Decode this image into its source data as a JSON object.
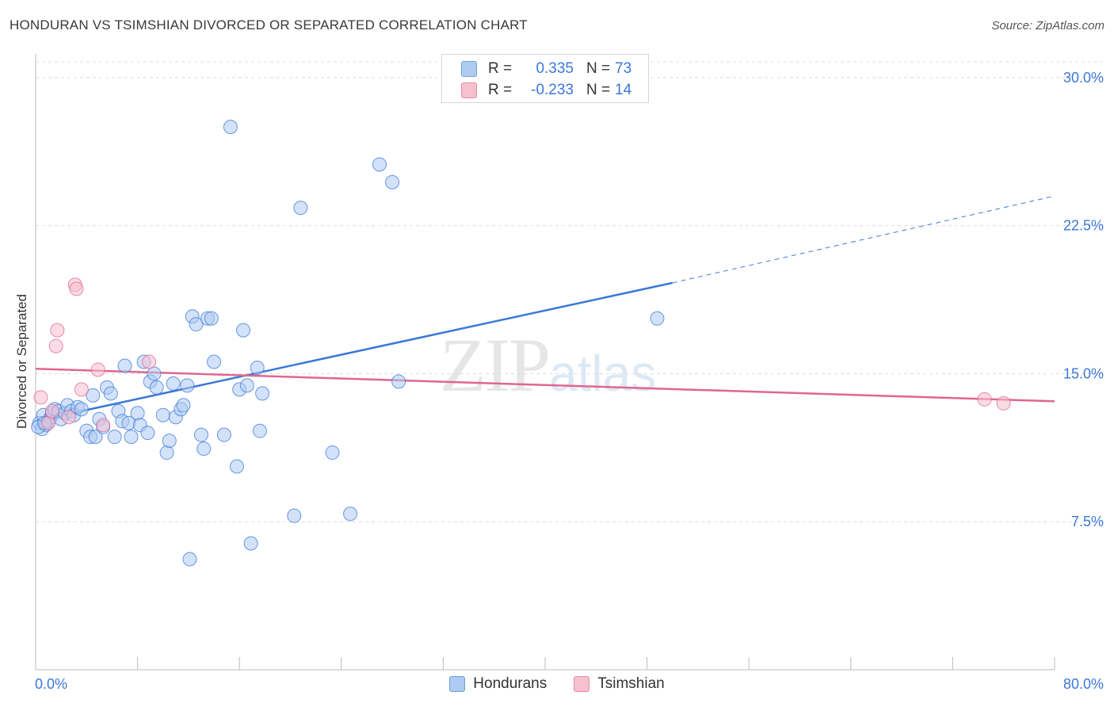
{
  "header": {
    "title": "HONDURAN VS TSIMSHIAN DIVORCED OR SEPARATED CORRELATION CHART",
    "source": "Source: ZipAtlas.com"
  },
  "watermark": {
    "zip": "ZIP",
    "atlas": "atlas"
  },
  "legend": {
    "rows": [
      {
        "r_label": "R =",
        "r_value": "0.335",
        "n_label": "N =",
        "n_value": "73",
        "color": "#aecbf2",
        "border": "#6f9fe0"
      },
      {
        "r_label": "R =",
        "r_value": "-0.233",
        "n_label": "N =",
        "n_value": "14",
        "color": "#f7c0cf",
        "border": "#e88aa6"
      }
    ]
  },
  "bottom_legend": [
    {
      "label": "Hondurans",
      "color": "#aecbf2",
      "border": "#6f9fe0"
    },
    {
      "label": "Tsimshian",
      "color": "#f7c0cf",
      "border": "#e88aa6"
    }
  ],
  "chart_data": {
    "type": "scatter",
    "title": "HONDURAN VS TSIMSHIAN DIVORCED OR SEPARATED CORRELATION CHART",
    "xlabel": "",
    "ylabel": "Divorced or Separated",
    "xlim": [
      0,
      80
    ],
    "ylim": [
      0,
      31.2
    ],
    "x_tick_labels": [
      "0.0%",
      "80.0%"
    ],
    "y_ticks": [
      7.5,
      15.0,
      22.5,
      30.0
    ],
    "y_tick_labels": [
      "7.5%",
      "15.0%",
      "22.5%",
      "30.0%"
    ],
    "grid": true,
    "series": [
      {
        "name": "Hondurans",
        "color": "#3b78d8",
        "fill": "#aecbf2",
        "points": [
          [
            0.3,
            12.5
          ],
          [
            0.5,
            12.2
          ],
          [
            0.6,
            12.9
          ],
          [
            0.8,
            12.4
          ],
          [
            1.0,
            12.6
          ],
          [
            1.2,
            12.8
          ],
          [
            1.3,
            13.0
          ],
          [
            1.5,
            13.2
          ],
          [
            1.8,
            13.1
          ],
          [
            2.0,
            12.7
          ],
          [
            2.3,
            13.0
          ],
          [
            2.5,
            13.4
          ],
          [
            2.8,
            13.1
          ],
          [
            3.0,
            12.9
          ],
          [
            3.3,
            13.3
          ],
          [
            3.6,
            13.2
          ],
          [
            4.0,
            12.1
          ],
          [
            4.3,
            11.8
          ],
          [
            4.5,
            13.9
          ],
          [
            4.7,
            11.8
          ],
          [
            5.0,
            12.7
          ],
          [
            5.3,
            12.3
          ],
          [
            5.6,
            14.3
          ],
          [
            5.9,
            14.0
          ],
          [
            6.2,
            11.8
          ],
          [
            6.5,
            13.1
          ],
          [
            6.8,
            12.6
          ],
          [
            7.0,
            15.4
          ],
          [
            7.3,
            12.5
          ],
          [
            7.5,
            11.8
          ],
          [
            8.0,
            13.0
          ],
          [
            8.2,
            12.4
          ],
          [
            8.5,
            15.6
          ],
          [
            8.8,
            12.0
          ],
          [
            9.0,
            14.6
          ],
          [
            9.3,
            15.0
          ],
          [
            9.5,
            14.3
          ],
          [
            10.0,
            12.9
          ],
          [
            10.3,
            11.0
          ],
          [
            10.5,
            11.6
          ],
          [
            10.8,
            14.5
          ],
          [
            11.0,
            12.8
          ],
          [
            11.4,
            13.2
          ],
          [
            11.6,
            13.4
          ],
          [
            11.9,
            14.4
          ],
          [
            12.1,
            5.6
          ],
          [
            12.3,
            17.9
          ],
          [
            12.6,
            17.5
          ],
          [
            13.0,
            11.9
          ],
          [
            13.2,
            11.2
          ],
          [
            13.5,
            17.8
          ],
          [
            13.8,
            17.8
          ],
          [
            14.0,
            15.6
          ],
          [
            14.8,
            11.9
          ],
          [
            15.3,
            27.5
          ],
          [
            15.8,
            10.3
          ],
          [
            16.0,
            14.2
          ],
          [
            16.3,
            17.2
          ],
          [
            16.6,
            14.4
          ],
          [
            16.9,
            6.4
          ],
          [
            17.4,
            15.3
          ],
          [
            17.6,
            12.1
          ],
          [
            17.8,
            14.0
          ],
          [
            20.3,
            7.8
          ],
          [
            20.8,
            23.4
          ],
          [
            23.3,
            11.0
          ],
          [
            24.7,
            7.9
          ],
          [
            27.0,
            25.6
          ],
          [
            28.0,
            24.7
          ],
          [
            28.5,
            14.6
          ],
          [
            48.8,
            17.8
          ],
          [
            0.2,
            12.3
          ],
          [
            0.7,
            12.5
          ]
        ],
        "trend": {
          "x0": 0,
          "y0": 12.6,
          "x1": 50,
          "y1": 19.6,
          "dashed_to_x": 80,
          "dashed_to_y": 24.0
        }
      },
      {
        "name": "Tsimshian",
        "color": "#e0668f",
        "fill": "#f7c0cf",
        "points": [
          [
            0.4,
            13.8
          ],
          [
            1.0,
            12.5
          ],
          [
            1.3,
            13.1
          ],
          [
            1.6,
            16.4
          ],
          [
            1.7,
            17.2
          ],
          [
            2.6,
            12.8
          ],
          [
            3.1,
            19.5
          ],
          [
            3.2,
            19.3
          ],
          [
            3.6,
            14.2
          ],
          [
            4.9,
            15.2
          ],
          [
            5.3,
            12.4
          ],
          [
            8.9,
            15.6
          ],
          [
            74.5,
            13.7
          ],
          [
            76.0,
            13.5
          ]
        ],
        "trend": {
          "x0": 0,
          "y0": 15.25,
          "x1": 80,
          "y1": 13.6
        }
      }
    ]
  }
}
